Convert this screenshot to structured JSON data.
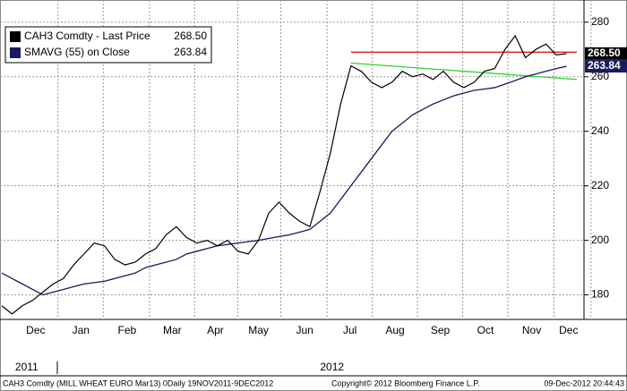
{
  "chart_data": {
    "type": "line",
    "categories": [
      null,
      null,
      null,
      null,
      null,
      null,
      null,
      null,
      null,
      null,
      null,
      null,
      null,
      null,
      null,
      null,
      null,
      null,
      null,
      null,
      null,
      null,
      null,
      null,
      null,
      null,
      null,
      null,
      null,
      null,
      null,
      null,
      null,
      null,
      null,
      null,
      null,
      null,
      null,
      null,
      null,
      null,
      null,
      null,
      null,
      null,
      null,
      null,
      null,
      null,
      null,
      null,
      null,
      null,
      null,
      null
    ],
    "series": [
      {
        "name": "CAH3 Comdty - Last Price",
        "color": "#000000",
        "last_label": "268.50",
        "values": [
          176,
          173,
          176,
          178,
          181,
          184,
          186,
          191,
          195,
          199,
          198,
          193,
          191,
          192,
          195,
          197,
          202,
          205,
          201,
          199,
          200,
          198,
          200,
          196,
          195,
          200,
          210,
          214,
          210,
          207,
          205,
          218,
          232,
          250,
          264,
          262,
          258,
          256,
          258,
          262,
          260,
          261,
          259,
          262,
          258,
          256,
          258,
          262,
          263,
          270,
          275,
          267,
          270,
          272,
          268,
          268.5
        ]
      },
      {
        "name": "SMAVG (55) on Close",
        "color": "#1a1a5e",
        "last_label": "263.84",
        "values": [
          188,
          186,
          184,
          182,
          180,
          181,
          182,
          183,
          184,
          184.5,
          185,
          186,
          187,
          188,
          190,
          191,
          192,
          193,
          195,
          196,
          197,
          198,
          198.5,
          199,
          199.5,
          200,
          200.7,
          201.4,
          202,
          203,
          204,
          207,
          210,
          215,
          220,
          225,
          230,
          235,
          240,
          243,
          246,
          248,
          250,
          251.5,
          253,
          254,
          255,
          255.5,
          256,
          257.3,
          258.6,
          260,
          261,
          262,
          263,
          263.84
        ]
      }
    ],
    "trend_lines": [
      {
        "color": "#d42020",
        "x": [
          34,
          56
        ],
        "y": [
          269,
          269
        ]
      },
      {
        "color": "#30d030",
        "x": [
          34,
          56
        ],
        "y": [
          265,
          259
        ]
      }
    ],
    "ylim": [
      171,
      286.5
    ],
    "yticks": [
      180,
      200,
      220,
      240,
      260,
      280
    ],
    "xlim": [
      0,
      56.7
    ],
    "xticks": [
      {
        "value": 3.3,
        "label": "Dec"
      },
      {
        "value": 7.7,
        "label": "Jan"
      },
      {
        "value": 12.2,
        "label": "Feb"
      },
      {
        "value": 16.6,
        "label": "Mar"
      },
      {
        "value": 20.8,
        "label": "Apr"
      },
      {
        "value": 25,
        "label": "May"
      },
      {
        "value": 29.5,
        "label": "Jun"
      },
      {
        "value": 33.9,
        "label": "Jul"
      },
      {
        "value": 38.3,
        "label": "Aug"
      },
      {
        "value": 42.7,
        "label": "Sep"
      },
      {
        "value": 47.1,
        "label": "Oct"
      },
      {
        "value": 51.6,
        "label": "Nov"
      },
      {
        "value": 55.2,
        "label": "Dec"
      }
    ],
    "year_labels": [
      {
        "value": 1.3,
        "label": "2011"
      },
      {
        "value": 31,
        "label": "2012"
      }
    ],
    "grid": true,
    "footer": {
      "left": "CAH3 Comdty (MILL WHEAT EURO  Mar13) 0Daily 19NOV2011-9DEC2012",
      "center": "Copyright© 2012 Bloomberg Finance L.P.",
      "right": "09-Dec-2012 20:44:43"
    }
  }
}
